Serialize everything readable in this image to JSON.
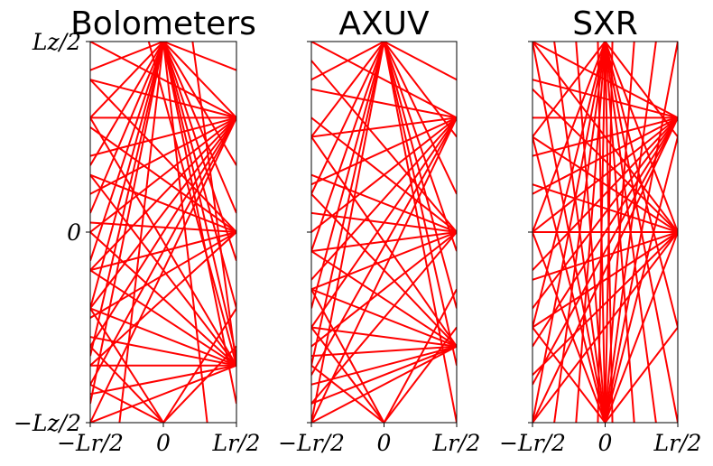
{
  "chart_data": [
    {
      "type": "line",
      "title": "Bolometers",
      "xticks": [
        "−Lr/2",
        "0",
        "Lr/2"
      ],
      "yticks": [
        "Lz/2",
        "0",
        "−Lz/2"
      ],
      "xlim": [
        -1,
        1
      ],
      "ylim": [
        -1,
        1
      ],
      "line_color": "#ff0000",
      "fans": [
        {
          "source": [
            0,
            1
          ],
          "targets_left": [
            0.85,
            0.6,
            0.35,
            0.1,
            -0.15,
            -0.4,
            -0.65,
            -0.9
          ],
          "targets_right": [
            0.85,
            0.6,
            0.35,
            0.1,
            -0.15,
            -0.4,
            -0.65,
            -0.9
          ],
          "targets_bottom": [
            -0.6,
            0.6
          ]
        },
        {
          "source": [
            1,
            0.6
          ],
          "targets_left": [
            1,
            0.8,
            0.6,
            0.4,
            0.2,
            0.0,
            -0.2,
            -0.4,
            -0.6,
            -0.8,
            -1
          ]
        },
        {
          "source": [
            1,
            0.0
          ],
          "targets_left": [
            0.8,
            0.55,
            0.3,
            0.05,
            -0.2,
            -0.45,
            -0.7
          ]
        },
        {
          "source": [
            1,
            -0.7
          ],
          "targets_left": [
            0.6,
            0.3,
            0.0,
            -0.2,
            -0.4,
            -0.55,
            -0.7,
            -0.85,
            -1
          ],
          "targets_top": [
            -0.2,
            0.4
          ]
        },
        {
          "source": [
            0,
            -1
          ],
          "targets_left": [
            -0.4,
            -0.6,
            -0.8
          ],
          "targets_right": [
            -0.4,
            -0.6
          ]
        }
      ]
    },
    {
      "type": "line",
      "title": "AXUV",
      "xticks": [
        "−Lr/2",
        "0",
        "Lr/2"
      ],
      "yticks": [],
      "xlim": [
        -1,
        1
      ],
      "ylim": [
        -1,
        1
      ],
      "line_color": "#ff0000",
      "fans": [
        {
          "source": [
            0,
            1
          ],
          "targets_left": [
            0.8,
            0.5,
            0.2,
            -0.1,
            -0.4,
            -0.7,
            -1
          ],
          "targets_right": [
            0.8,
            0.5,
            0.2,
            -0.1,
            -0.4,
            -0.7,
            -1
          ]
        },
        {
          "source": [
            1,
            0.6
          ],
          "targets_left": [
            1,
            0.75,
            0.5,
            0.25,
            0.0,
            -0.25,
            -0.5,
            -0.75,
            -1
          ]
        },
        {
          "source": [
            1,
            0.0
          ],
          "targets_left": [
            0.9,
            0.6,
            0.3,
            0.1,
            -0.1,
            -0.3,
            -0.6,
            -0.9
          ]
        },
        {
          "source": [
            1,
            -0.6
          ],
          "targets_left": [
            0.5,
            0.2,
            -0.1,
            -0.3,
            -0.5,
            -0.65,
            -0.8,
            -0.9,
            -1
          ]
        },
        {
          "source": [
            0,
            -1
          ],
          "targets_left": [
            -0.3,
            -0.5,
            -0.7
          ],
          "targets_right": [
            -0.3,
            -0.5
          ]
        }
      ]
    },
    {
      "type": "line",
      "title": "SXR",
      "xticks": [
        "−Lr/2",
        "0",
        "Lr/2"
      ],
      "yticks": [],
      "xlim": [
        -1,
        1
      ],
      "ylim": [
        -1,
        1
      ],
      "line_color": "#ff0000",
      "fans": [
        {
          "source": [
            0,
            1
          ],
          "targets_bottom": [
            -1,
            -0.7,
            -0.4,
            -0.1,
            0.1,
            0.4,
            0.7,
            1
          ],
          "targets_left": [
            0.5,
            0.0,
            -0.5
          ],
          "targets_right": [
            0.5,
            0.0,
            -0.5
          ]
        },
        {
          "source": [
            1,
            0.6
          ],
          "targets_left": [
            1,
            0.8,
            0.6,
            0.4,
            0.2,
            0.0,
            -0.2,
            -0.4,
            -0.6,
            -0.8,
            -1
          ]
        },
        {
          "source": [
            1,
            0.0
          ],
          "targets_left": [
            1,
            0.75,
            0.5,
            0.25,
            0.0,
            -0.25,
            -0.5,
            -0.75,
            -1
          ]
        },
        {
          "source": [
            0,
            -1
          ],
          "targets_top": [
            -1,
            -0.7,
            -0.4,
            -0.1,
            0.1,
            0.4,
            0.7,
            1
          ],
          "targets_left": [
            0.5,
            0.0,
            -0.5
          ],
          "targets_right": [
            0.5,
            0.0,
            -0.5
          ]
        }
      ]
    }
  ]
}
